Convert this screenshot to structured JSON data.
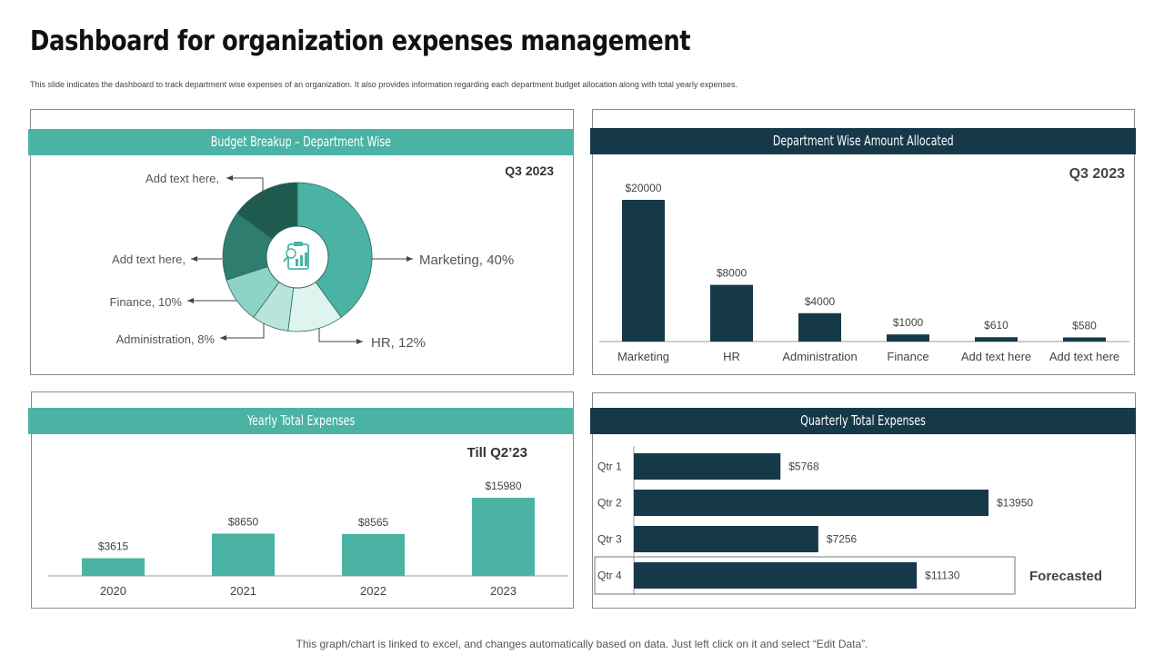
{
  "page": {
    "title": "Dashboard for organization expenses management",
    "subtitle": "This slide indicates the dashboard to track department  wise expenses of an organization. It also provides information regarding each department budget allocation along with total yearly expenses.",
    "footer": "This graph/chart is linked to excel, and changes automatically based on data. Just left click on it and select “Edit Data”."
  },
  "colors": {
    "teal": "#4ab3a4",
    "navy": "#16394a",
    "dark_green": "#1f5a4f",
    "mid_green": "#2f7d6f",
    "light_teal": "#8fd3c6",
    "pale_teal": "#b9e4dc",
    "paler_teal": "#dff3ef"
  },
  "panels": {
    "budget": {
      "header": "Budget Breakup – Department Wise",
      "period": "Q3 2023"
    },
    "allocated": {
      "header": "Department  Wise Amount Allocated",
      "period": "Q3 2023"
    },
    "yearly": {
      "header": "Yearly Total Expenses",
      "period": "Till Q2’23"
    },
    "quarterly": {
      "header": "Quarterly Total Expenses",
      "note": "Forecasted"
    }
  },
  "chart_data": [
    {
      "id": "budget_breakup",
      "type": "pie",
      "title": "Budget Breakup – Department Wise",
      "center_icon": "clipboard-chart-icon",
      "slices": [
        {
          "label": "Marketing, 40%",
          "value": 40
        },
        {
          "label": "HR, 12%",
          "value": 12
        },
        {
          "label": "Administration, 8%",
          "value": 8
        },
        {
          "label": "Finance, 10%",
          "value": 10
        },
        {
          "label": "Add text here,",
          "value": 15
        },
        {
          "label": "Add text here,",
          "value": 15
        }
      ]
    },
    {
      "id": "department_allocated",
      "type": "bar",
      "title": "Department  Wise Amount Allocated",
      "categories": [
        "Marketing",
        "HR",
        "Administration",
        "Finance",
        "Add text here",
        "Add text here"
      ],
      "values": [
        20000,
        8000,
        4000,
        1000,
        610,
        580
      ],
      "labels": [
        "$20000",
        "$8000",
        "$4000",
        "$1000",
        "$610",
        "$580"
      ],
      "ylim": [
        0,
        20000
      ]
    },
    {
      "id": "yearly_total",
      "type": "bar",
      "title": "Yearly Total Expenses",
      "categories": [
        "2020",
        "2021",
        "2022",
        "2023"
      ],
      "values": [
        3615,
        8650,
        8565,
        15980
      ],
      "labels": [
        "$3615",
        "$8650",
        "$8565",
        "$15980"
      ],
      "ylim": [
        0,
        15980
      ]
    },
    {
      "id": "quarterly_total",
      "type": "bar",
      "orientation": "horizontal",
      "title": "Quarterly Total Expenses",
      "categories": [
        "Qtr 1",
        "Qtr 2",
        "Qtr 3",
        "Qtr 4"
      ],
      "values": [
        5768,
        13950,
        7256,
        11130
      ],
      "labels": [
        "$5768",
        "$13950",
        "$7256",
        "$11130"
      ],
      "xlim": [
        0,
        13950
      ],
      "forecasted_category": "Qtr 4"
    }
  ]
}
